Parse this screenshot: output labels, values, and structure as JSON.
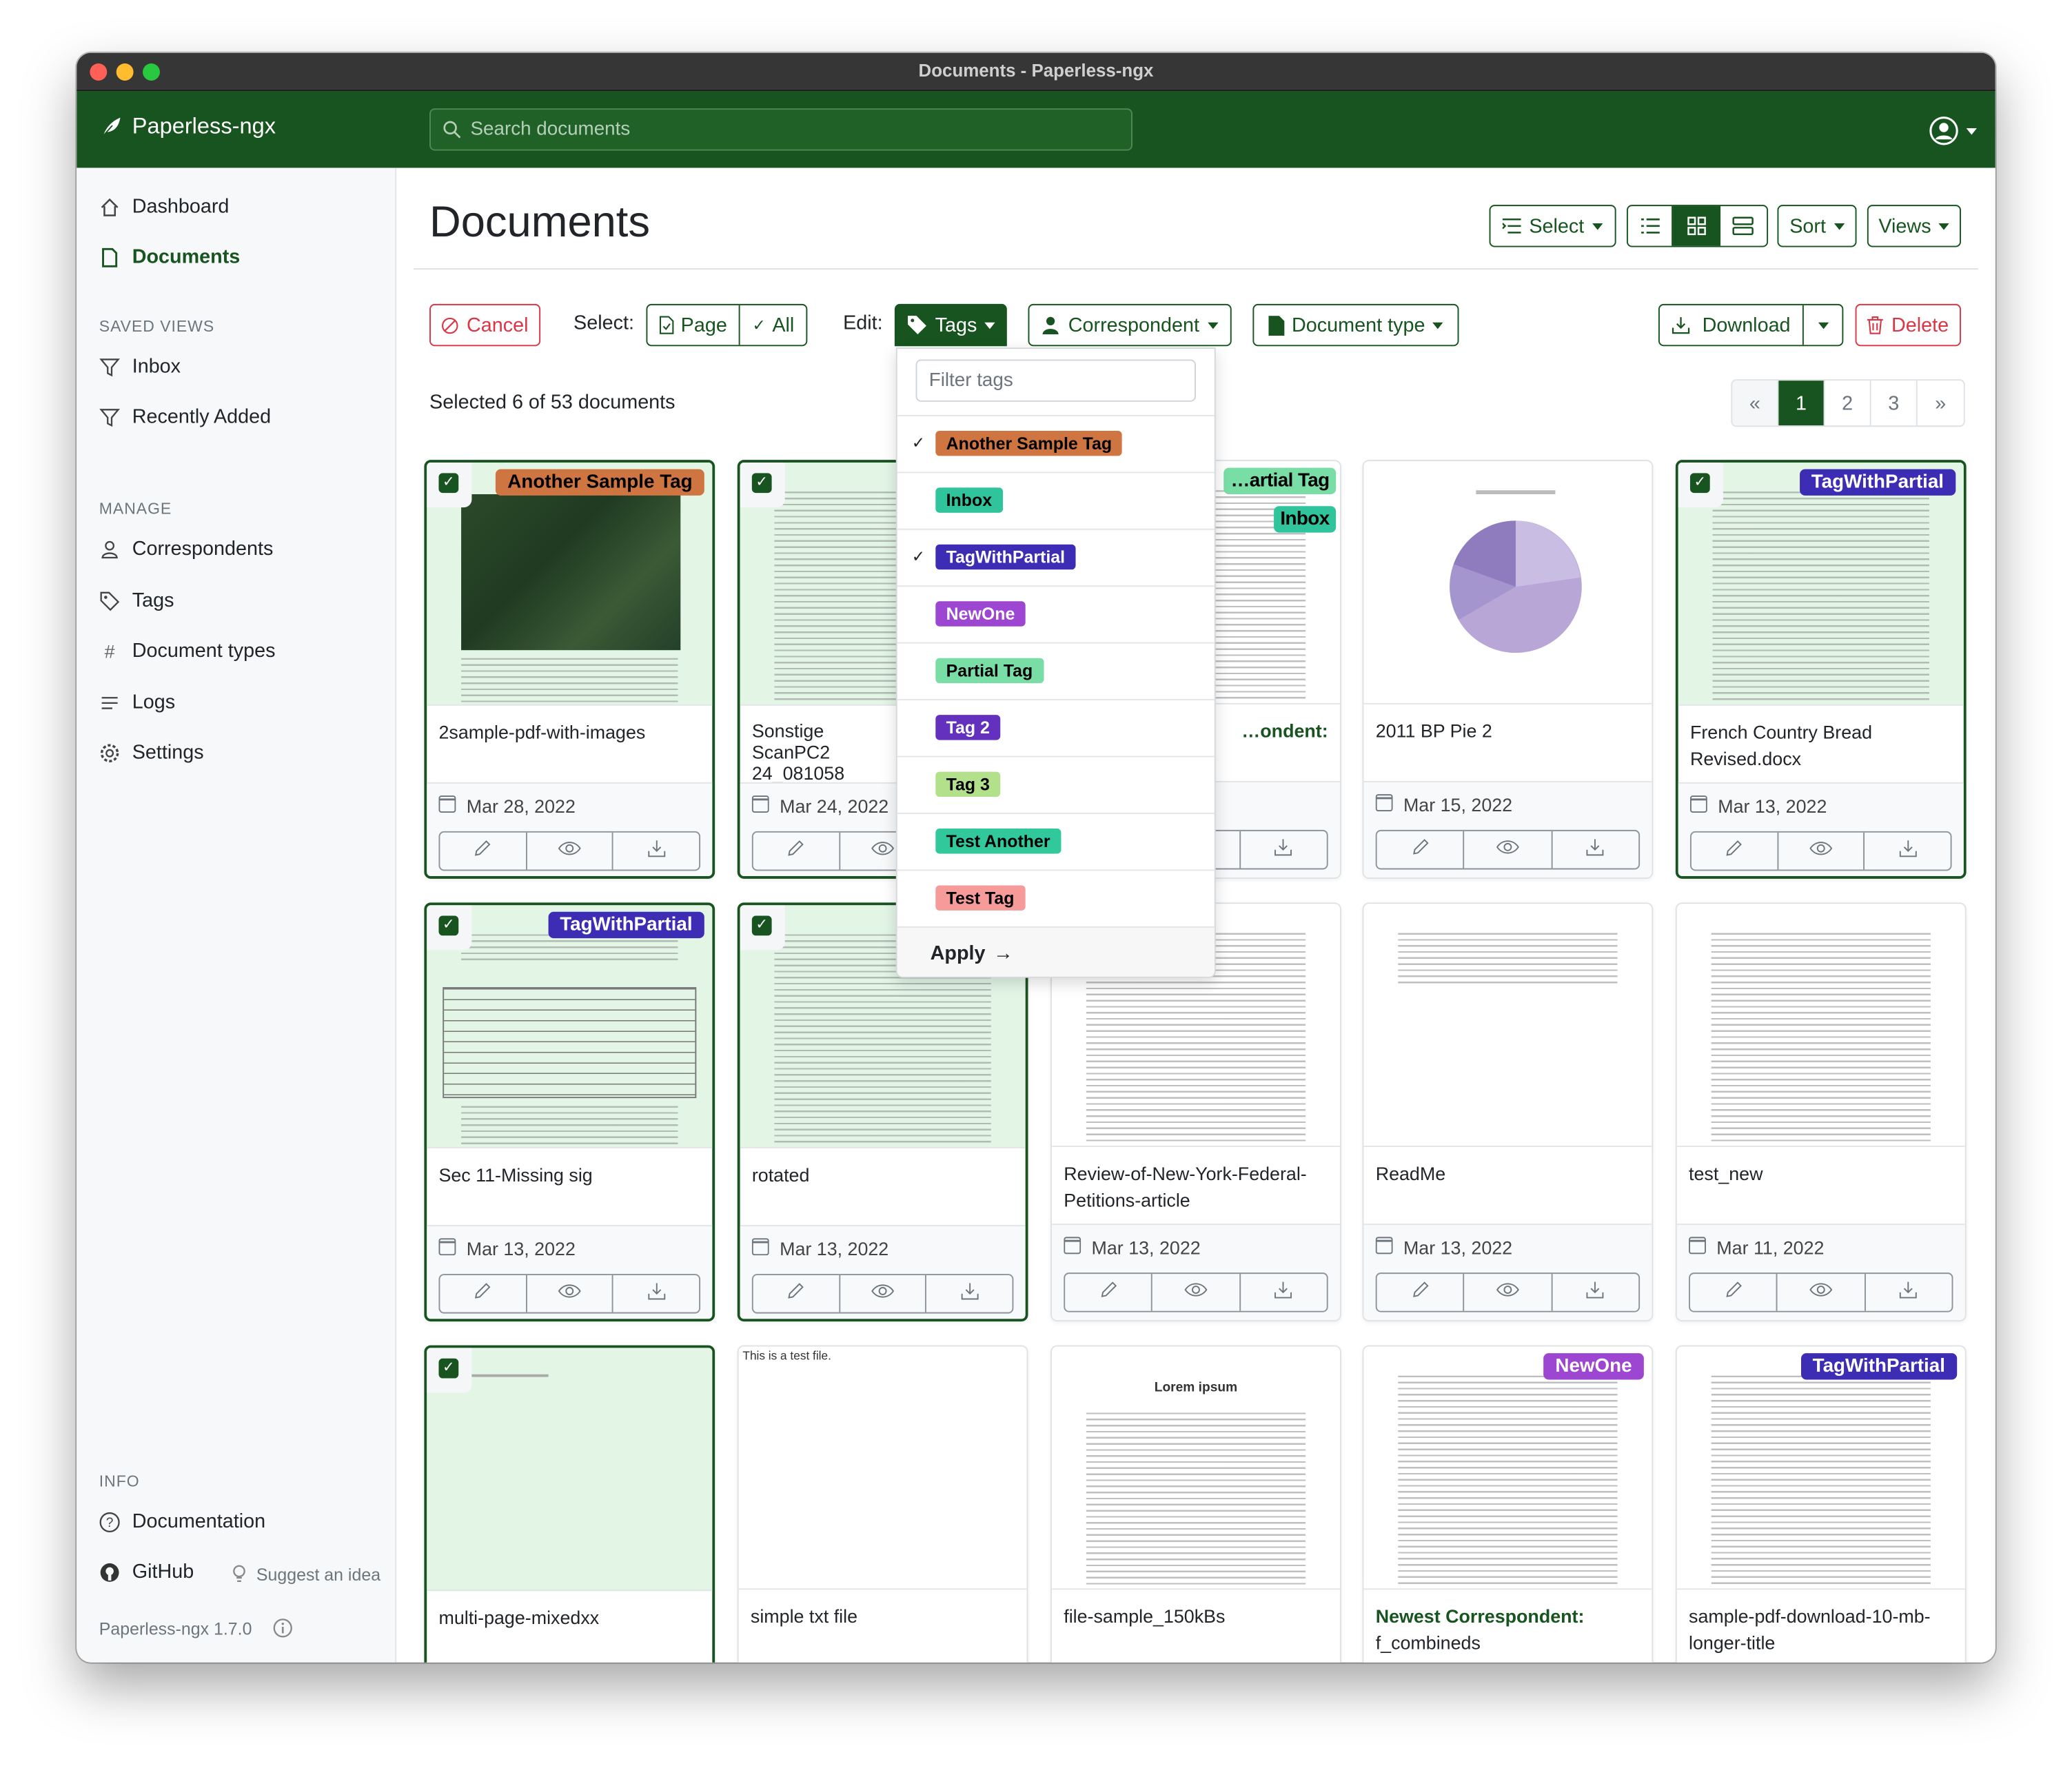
{
  "window": {
    "title": "Documents - Paperless-ngx"
  },
  "navbar": {
    "brand": "Paperless-ngx",
    "search_placeholder": "Search documents"
  },
  "sidebar": {
    "items": [
      {
        "label": "Dashboard",
        "icon": "house-icon"
      },
      {
        "label": "Documents",
        "icon": "document-icon",
        "active": true
      }
    ],
    "saved_views_heading": "SAVED VIEWS",
    "saved_views": [
      {
        "label": "Inbox",
        "icon": "funnel-icon"
      },
      {
        "label": "Recently Added",
        "icon": "funnel-icon"
      }
    ],
    "manage_heading": "MANAGE",
    "manage": [
      {
        "label": "Correspondents",
        "icon": "person-icon"
      },
      {
        "label": "Tags",
        "icon": "tag-icon"
      },
      {
        "label": "Document types",
        "icon": "hash-icon"
      },
      {
        "label": "Logs",
        "icon": "list-icon"
      },
      {
        "label": "Settings",
        "icon": "gear-icon"
      }
    ],
    "info_heading": "INFO",
    "documentation": "Documentation",
    "github": "GitHub",
    "suggest": "Suggest an idea",
    "version": "Paperless-ngx 1.7.0"
  },
  "header": {
    "title": "Documents",
    "select": "Select",
    "sort": "Sort",
    "views": "Views",
    "view_mode": "small-cards"
  },
  "bulk": {
    "cancel": "Cancel",
    "select_label": "Select:",
    "page": "Page",
    "all": "All",
    "edit_label": "Edit:",
    "tags": "Tags",
    "correspondent": "Correspondent",
    "document_type": "Document type",
    "download": "Download",
    "delete": "Delete"
  },
  "status": "Selected 6 of 53 documents",
  "pagination": {
    "prev": "«",
    "pages": [
      "1",
      "2",
      "3"
    ],
    "current": "1",
    "next": "»"
  },
  "tags_dropdown": {
    "filter_placeholder": "Filter tags",
    "items": [
      {
        "name": "Another Sample Tag",
        "color": "#cf7541",
        "text": "#000000",
        "checked": true
      },
      {
        "name": "Inbox",
        "color": "#2fc49b",
        "text": "#000000",
        "checked": false
      },
      {
        "name": "TagWithPartial",
        "color": "#3d2db5",
        "text": "#ffffff",
        "checked": true
      },
      {
        "name": "NewOne",
        "color": "#9d46d1",
        "text": "#ffffff",
        "checked": false
      },
      {
        "name": "Partial Tag",
        "color": "#78dea6",
        "text": "#000000",
        "checked": false
      },
      {
        "name": "Tag 2",
        "color": "#6331bd",
        "text": "#ffffff",
        "checked": false
      },
      {
        "name": "Tag 3",
        "color": "#b2e08b",
        "text": "#000000",
        "checked": false
      },
      {
        "name": "Test Another",
        "color": "#31c99c",
        "text": "#000000",
        "checked": false
      },
      {
        "name": "Test Tag",
        "color": "#f69a9a",
        "text": "#000000",
        "checked": false
      }
    ],
    "apply": "Apply"
  },
  "colors": {
    "primary": "#17541f",
    "danger": "#dc3545"
  },
  "cards": [
    {
      "title": "2sample-pdf-with-images",
      "date": "Mar 28, 2022",
      "selected": true,
      "tags": [
        {
          "name": "Another Sample Tag",
          "color": "#cf7541",
          "text": "#000000"
        }
      ],
      "preview": "map"
    },
    {
      "title": "Sonstige ScanPC2 24_081058",
      "date": "Mar 24, 2022",
      "selected": true,
      "tags": [],
      "preview": "lines"
    },
    {
      "correspondent": "…ondent:",
      "title": "",
      "date": "",
      "selected": false,
      "tags": [
        {
          "name": "…artial Tag",
          "color": "#78dea6",
          "text": "#000000"
        },
        {
          "name": "Inbox",
          "color": "#2fc49b",
          "text": "#000000"
        }
      ],
      "preview": "lines"
    },
    {
      "title": "2011 BP Pie 2",
      "date": "Mar 15, 2022",
      "selected": false,
      "tags": [],
      "preview": "pie"
    },
    {
      "title": "French Country Bread Revised.docx",
      "date": "Mar 13, 2022",
      "selected": true,
      "tags": [
        {
          "name": "TagWithPartial",
          "color": "#3d2db5",
          "text": "#ffffff"
        }
      ],
      "preview": "lines"
    },
    {
      "title": "Sec 11-Missing sig",
      "date": "Mar 13, 2022",
      "selected": true,
      "tags": [
        {
          "name": "TagWithPartial",
          "color": "#3d2db5",
          "text": "#ffffff"
        }
      ],
      "preview": "form"
    },
    {
      "title": "rotated",
      "date": "Mar 13, 2022",
      "selected": true,
      "tags": [],
      "preview": "lines"
    },
    {
      "title": "Review-of-New-York-Federal-Petitions-article",
      "date": "Mar 13, 2022",
      "selected": false,
      "tags": [],
      "preview": "lines"
    },
    {
      "title": "ReadMe",
      "date": "Mar 13, 2022",
      "selected": false,
      "tags": [],
      "preview": "short"
    },
    {
      "title": "test_new",
      "date": "Mar 11, 2022",
      "selected": false,
      "tags": [],
      "preview": "lines"
    },
    {
      "title": "multi-page-mixedxx",
      "date": "",
      "selected": true,
      "tags": [],
      "preview": "blank"
    },
    {
      "title": "simple txt file",
      "date": "",
      "selected": false,
      "tags": [],
      "preview": "text",
      "preview_text": "This is a test file."
    },
    {
      "title": "file-sample_150kBs",
      "date": "",
      "selected": false,
      "tags": [],
      "preview": "lorem",
      "preview_text": "Lorem ipsum"
    },
    {
      "correspondent": "Newest Correspondent:",
      "title": "f_combineds",
      "date": "",
      "selected": false,
      "tags": [
        {
          "name": "NewOne",
          "color": "#9d46d1",
          "text": "#ffffff"
        }
      ],
      "preview": "lines"
    },
    {
      "title": "sample-pdf-download-10-mb-longer-title",
      "date": "",
      "selected": false,
      "tags": [
        {
          "name": "TagWithPartial",
          "color": "#3d2db5",
          "text": "#ffffff"
        }
      ],
      "preview": "lines"
    }
  ]
}
